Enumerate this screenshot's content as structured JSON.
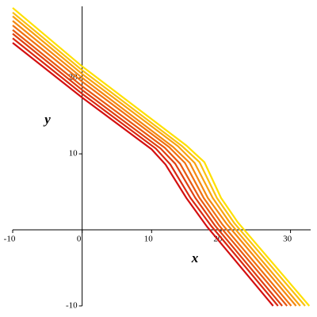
{
  "chart_data": {
    "type": "line",
    "x_label": "x",
    "y_label": "y",
    "xlim": [
      -10,
      32.9
    ],
    "ylim": [
      -10,
      29.4
    ],
    "xticks": [
      -10,
      0,
      10,
      20,
      30
    ],
    "yticks": [
      -10,
      10,
      20
    ],
    "series": [
      {
        "color": "#d41010",
        "x": [
          -10,
          0,
          10,
          12,
          15,
          18,
          27.5
        ],
        "values": [
          24.6,
          17.4,
          10.6,
          8.6,
          4.2,
          0.4,
          -10
        ]
      },
      {
        "color": "#da2a10",
        "x": [
          -10,
          0,
          10.6,
          12.7,
          15.6,
          18.6,
          28.2
        ],
        "values": [
          25.2,
          17.9,
          10.7,
          8.6,
          4.2,
          0.5,
          -10
        ]
      },
      {
        "color": "#e04010",
        "x": [
          -10,
          0,
          11.3,
          13.4,
          16.3,
          19.1,
          28.8
        ],
        "values": [
          25.8,
          18.4,
          10.7,
          8.7,
          4.2,
          0.6,
          -10
        ]
      },
      {
        "color": "#e85810",
        "x": [
          -10,
          0,
          11.9,
          14.1,
          16.9,
          19.7,
          29.5
        ],
        "values": [
          26.3,
          18.9,
          10.8,
          8.7,
          4.2,
          0.6,
          -10
        ]
      },
      {
        "color": "#f07010",
        "x": [
          -10,
          0,
          12.5,
          14.8,
          17.5,
          20.2,
          30.1
        ],
        "values": [
          26.9,
          19.5,
          10.9,
          8.8,
          4.2,
          0.7,
          -10
        ]
      },
      {
        "color": "#f48810",
        "x": [
          -10,
          0,
          13.1,
          15.5,
          18.1,
          20.8,
          30.8
        ],
        "values": [
          27.5,
          20.0,
          10.9,
          8.8,
          4.2,
          0.8,
          -10
        ]
      },
      {
        "color": "#f8a010",
        "x": [
          -10,
          0,
          13.8,
          16.2,
          18.8,
          21.3,
          31.4
        ],
        "values": [
          28.1,
          20.5,
          11.0,
          8.8,
          4.2,
          0.9,
          -10
        ]
      },
      {
        "color": "#fac010",
        "x": [
          -10,
          0,
          14.4,
          16.9,
          19.4,
          21.9,
          32.1
        ],
        "values": [
          28.6,
          21.0,
          11.0,
          8.9,
          4.2,
          0.9,
          -10
        ]
      },
      {
        "color": "#ffe000",
        "x": [
          -10,
          0,
          15,
          17.6,
          20,
          22.4,
          32.7
        ],
        "values": [
          29.2,
          21.5,
          11.1,
          8.9,
          4.2,
          1.0,
          -10
        ]
      }
    ]
  }
}
